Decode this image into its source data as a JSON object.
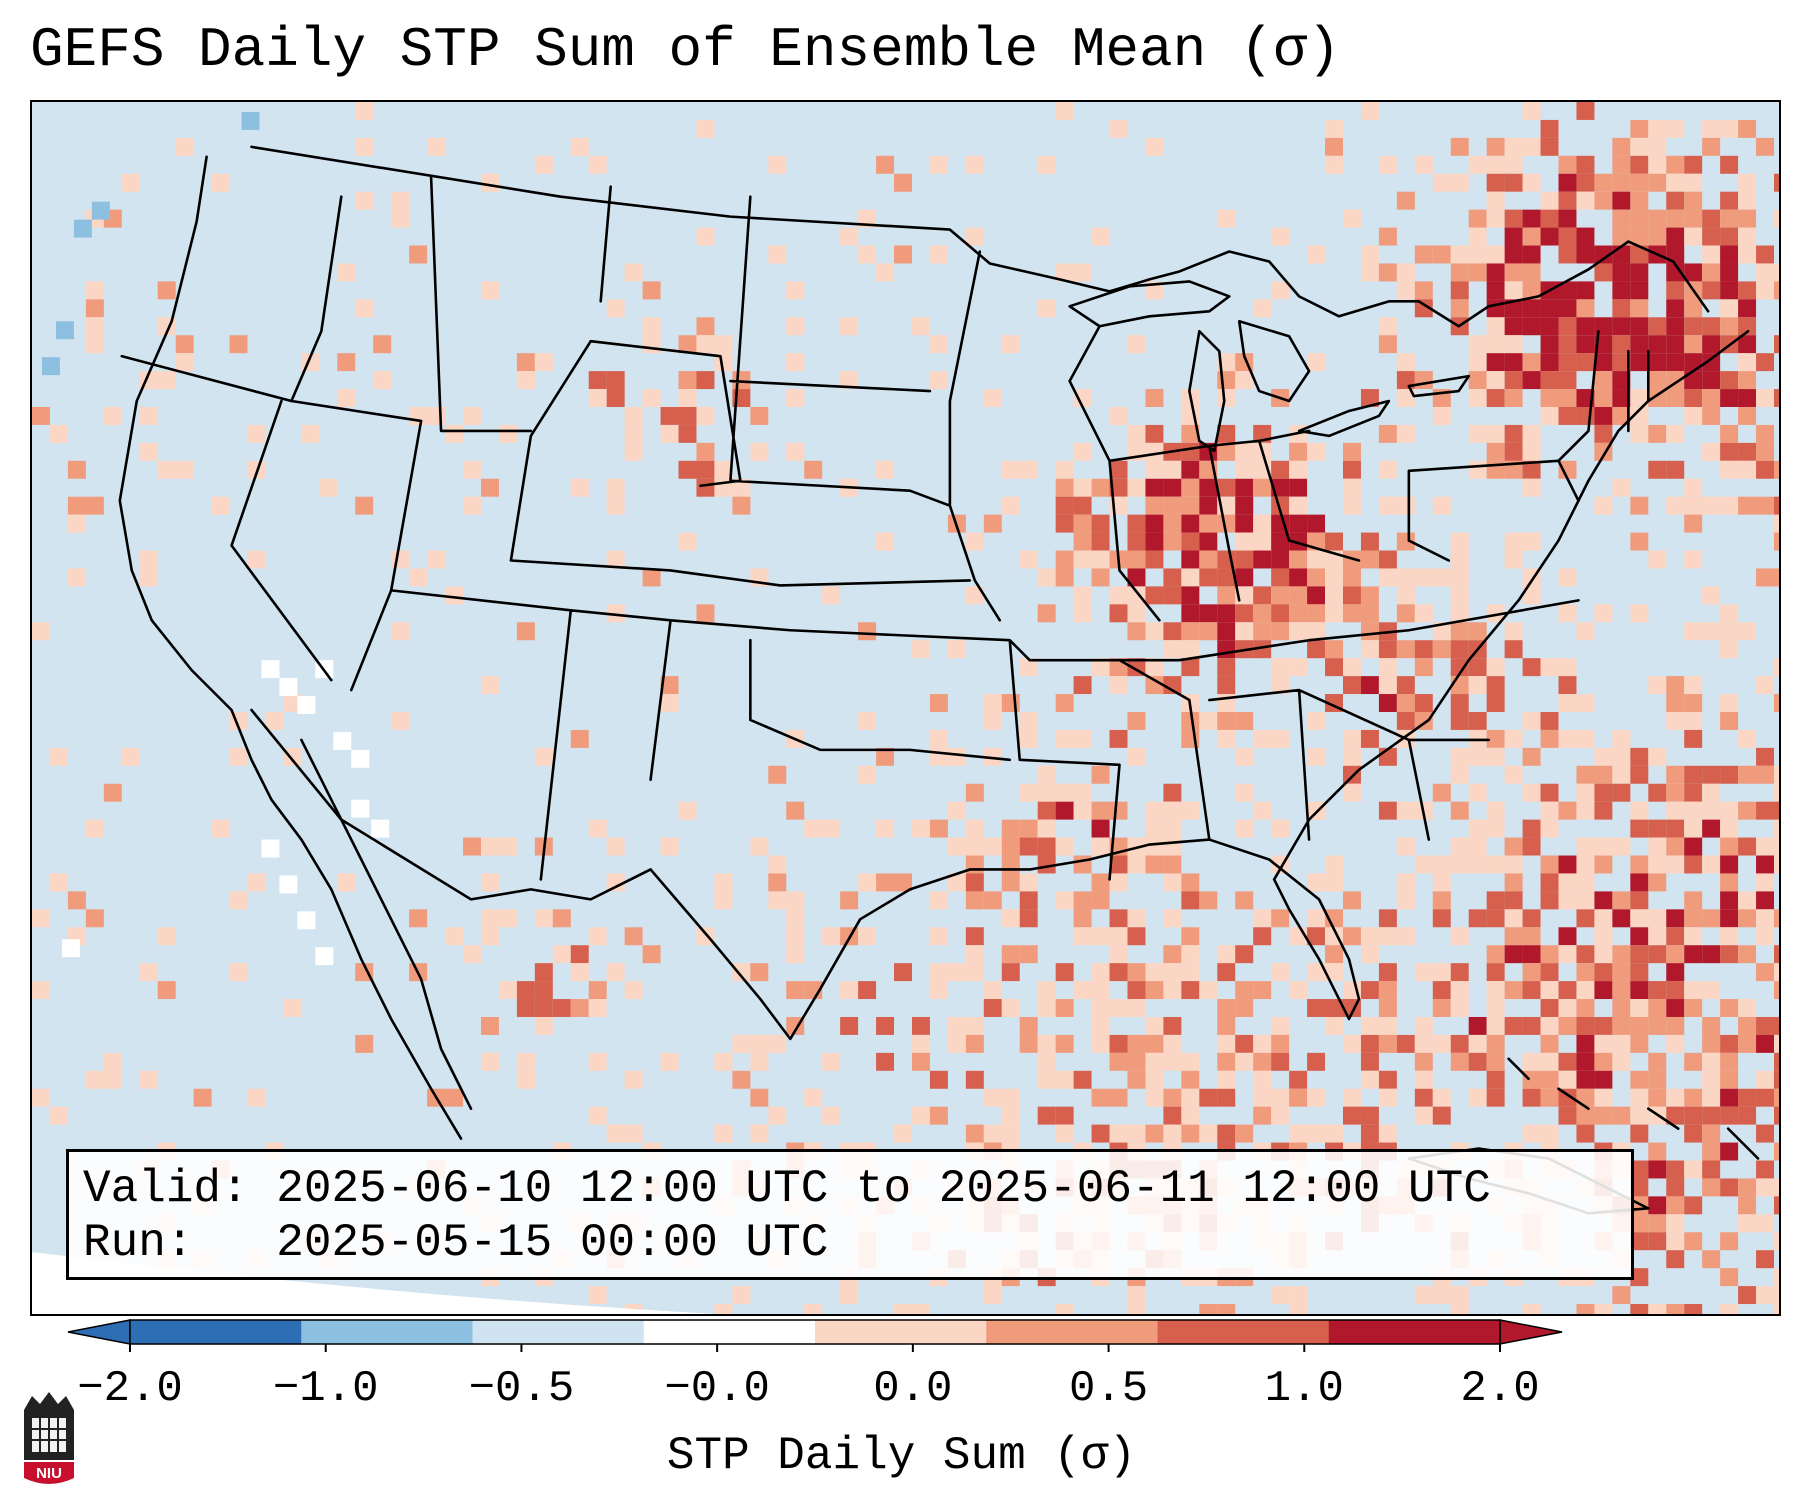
{
  "header": {
    "title": "GEFS Daily STP Sum of Ensemble Mean (σ)"
  },
  "info_box": {
    "valid_line": "Valid: 2025-06-10 12:00 UTC to 2025-06-11 12:00 UTC",
    "run_line": "Run:   2025-05-15 00:00 UTC"
  },
  "colorbar": {
    "label": "STP Daily Sum (σ)",
    "ticks": [
      "−2.0",
      "−1.0",
      "−0.5",
      "−0.0",
      "0.0",
      "0.5",
      "1.0",
      "2.0"
    ],
    "bin_colors": [
      "#2e6eb5",
      "#8dbfe0",
      "#d0e3f0",
      "#ffffff",
      "#fbd6c4",
      "#f09b7c",
      "#d6604d",
      "#b2182b"
    ],
    "extend": "both"
  },
  "map": {
    "projection": "lambert-conformal",
    "region": "CONUS",
    "background_color": "#d2e4f0",
    "boundary_color": "#000000"
  },
  "logo": {
    "text": "NIU",
    "color": "#c8102e"
  }
}
